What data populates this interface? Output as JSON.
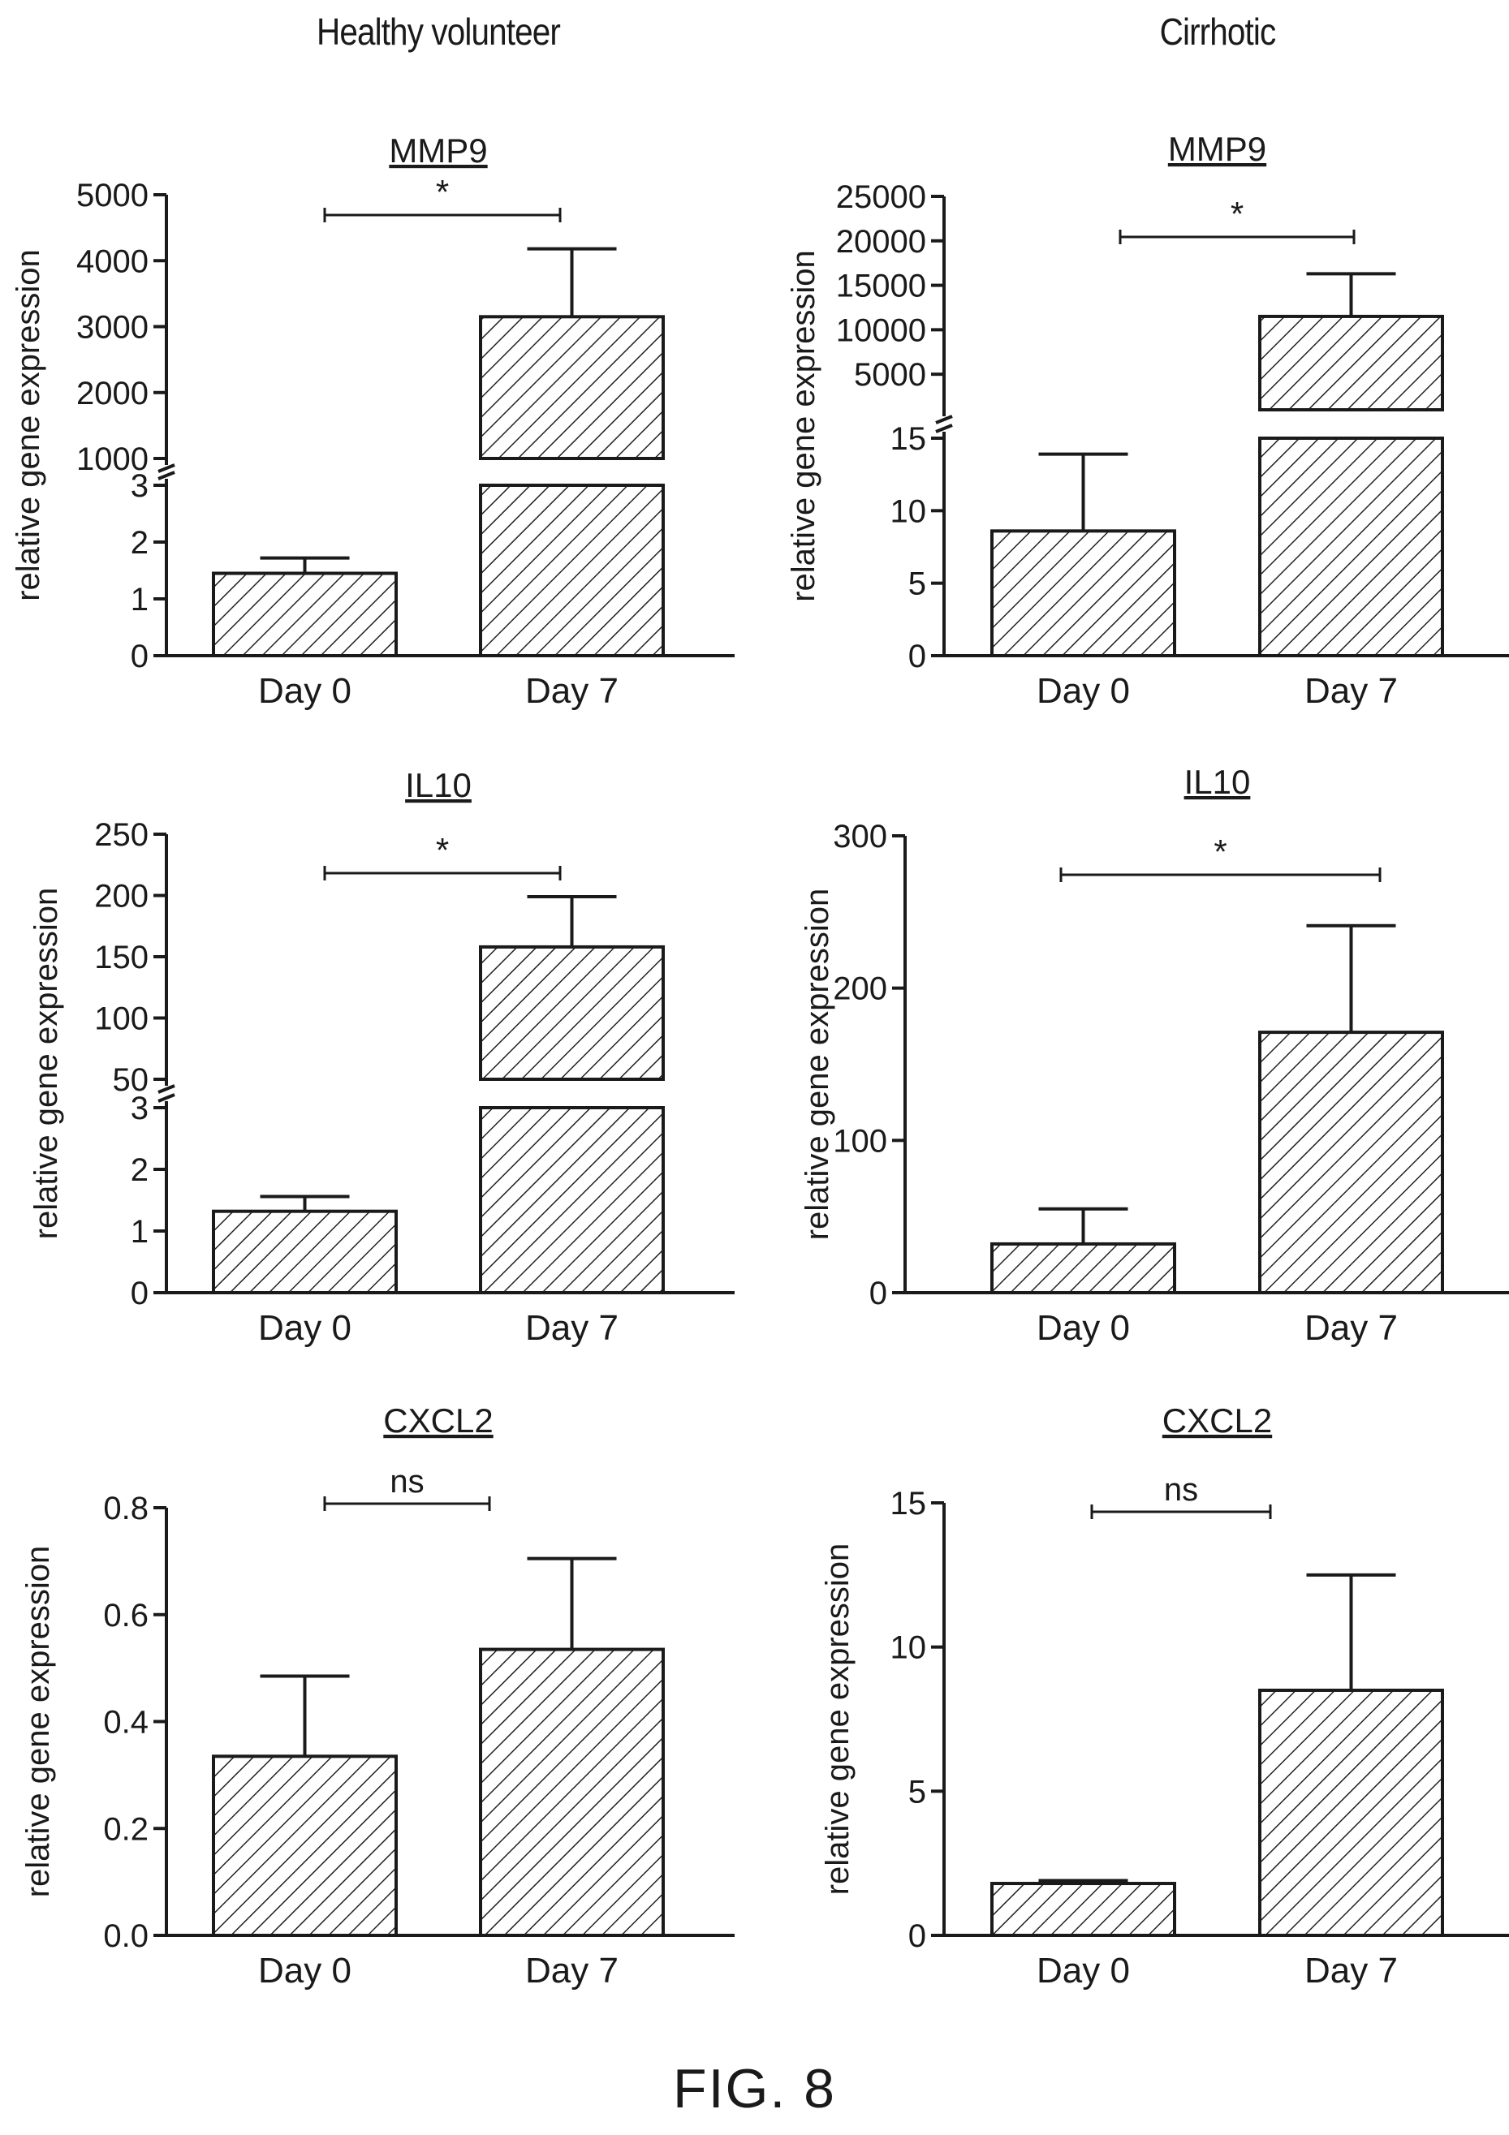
{
  "columns": [
    "Healthy volunteer",
    "Cirrhotic"
  ],
  "figure_label": "FIG. 8",
  "colors": {
    "ink": "#1a1a1a",
    "hatch": "#222222",
    "background": "#ffffff"
  },
  "chart_data": [
    {
      "id": "hv-mmp9",
      "type": "bar",
      "title": "MMP9",
      "ylabel": "relative gene expression",
      "categories": [
        "Day 0",
        "Day 7"
      ],
      "values": [
        1.45,
        3150
      ],
      "errors": [
        1.72,
        4180
      ],
      "broken_axis": true,
      "lower": {
        "ylim": [
          0,
          3
        ],
        "ticks": [
          0,
          1,
          2,
          3
        ]
      },
      "upper": {
        "ylim": [
          1000,
          5000
        ],
        "ticks": [
          1000,
          2000,
          3000,
          4000,
          5000
        ]
      },
      "significance": "*"
    },
    {
      "id": "ci-mmp9",
      "type": "bar",
      "title": "MMP9",
      "ylabel": "relative gene expression",
      "categories": [
        "Day 0",
        "Day 7"
      ],
      "values": [
        8.6,
        11500
      ],
      "errors": [
        13.9,
        16300
      ],
      "broken_axis": true,
      "lower": {
        "ylim": [
          0,
          15
        ],
        "ticks": [
          0,
          5,
          10,
          15
        ]
      },
      "upper": {
        "ylim": [
          1000,
          25000
        ],
        "ticks": [
          5000,
          10000,
          15000,
          20000,
          25000
        ]
      },
      "significance": "*"
    },
    {
      "id": "hv-il10",
      "type": "bar",
      "title": "IL10",
      "ylabel": "relative gene expression",
      "categories": [
        "Day 0",
        "Day 7"
      ],
      "values": [
        1.32,
        158
      ],
      "errors": [
        1.56,
        199
      ],
      "broken_axis": true,
      "lower": {
        "ylim": [
          0,
          3
        ],
        "ticks": [
          0,
          1,
          2,
          3
        ]
      },
      "upper": {
        "ylim": [
          50,
          250
        ],
        "ticks": [
          50,
          100,
          150,
          200,
          250
        ]
      },
      "significance": "*"
    },
    {
      "id": "ci-il10",
      "type": "bar",
      "title": "IL10",
      "ylabel": "relative gene expression",
      "categories": [
        "Day 0",
        "Day 7"
      ],
      "values": [
        32,
        171
      ],
      "errors": [
        55,
        241
      ],
      "broken_axis": false,
      "ylim": [
        0,
        300
      ],
      "ticks": [
        0,
        100,
        200,
        300
      ],
      "significance": "*"
    },
    {
      "id": "hv-cxcl2",
      "type": "bar",
      "title": "CXCL2",
      "ylabel": "relative gene expression",
      "categories": [
        "Day 0",
        "Day 7"
      ],
      "values": [
        0.335,
        0.535
      ],
      "errors": [
        0.485,
        0.705
      ],
      "broken_axis": false,
      "ylim": [
        0,
        0.8
      ],
      "ticks": [
        "0.0",
        "0.2",
        "0.4",
        "0.6",
        "0.8"
      ],
      "significance": "ns"
    },
    {
      "id": "ci-cxcl2",
      "type": "bar",
      "title": "CXCL2",
      "ylabel": "relative gene expression",
      "categories": [
        "Day 0",
        "Day 7"
      ],
      "values": [
        1.8,
        8.5
      ],
      "errors": [
        1.9,
        12.5
      ],
      "broken_axis": false,
      "ylim": [
        0,
        15
      ],
      "ticks": [
        0,
        5,
        10,
        15
      ],
      "significance": "ns"
    }
  ]
}
